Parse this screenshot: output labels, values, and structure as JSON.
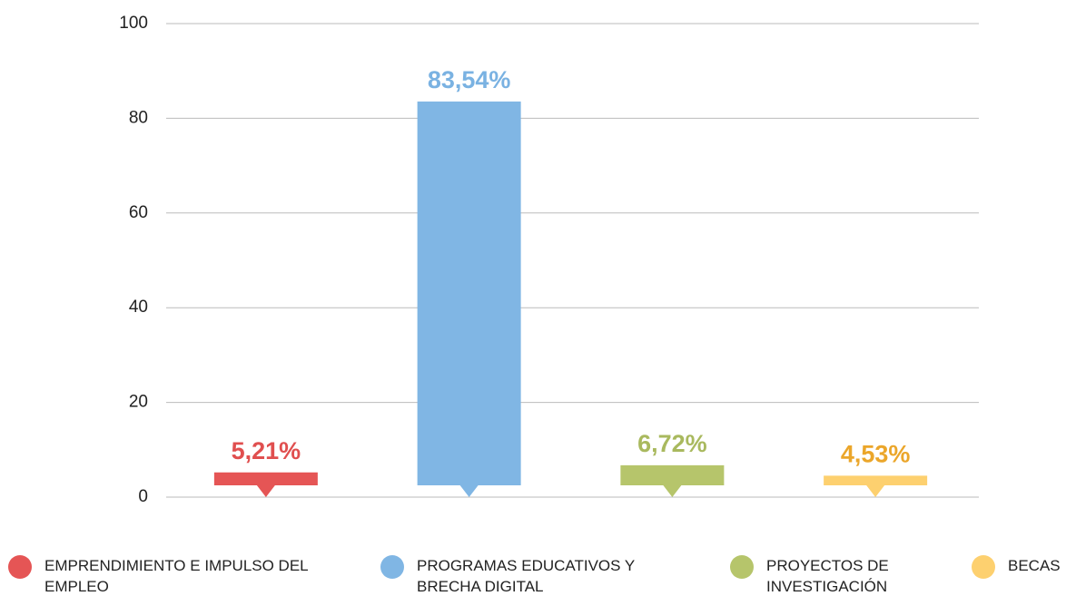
{
  "chart_data": {
    "type": "bar",
    "categories": [
      "EMPRENDIMIENTO E IMPULSO DEL EMPLEO",
      "PROGRAMAS EDUCATIVOS Y BRECHA DIGITAL",
      "PROYECTOS DE INVESTIGACIÓN",
      "BECAS"
    ],
    "values": [
      5.21,
      83.54,
      6.72,
      4.53
    ],
    "value_labels": [
      "5,21%",
      "83,54%",
      "6,72%",
      "4,53%"
    ],
    "colors": [
      "#e55555",
      "#80b6e4",
      "#b6c56b",
      "#fdd06f"
    ],
    "value_label_colors": [
      "#e04f4f",
      "#7ab2e2",
      "#a9b95e",
      "#eba62a"
    ],
    "ylim": [
      0,
      100
    ],
    "yticks": [
      0,
      20,
      40,
      60,
      80,
      100
    ],
    "grid": true,
    "legend": "bottom"
  }
}
